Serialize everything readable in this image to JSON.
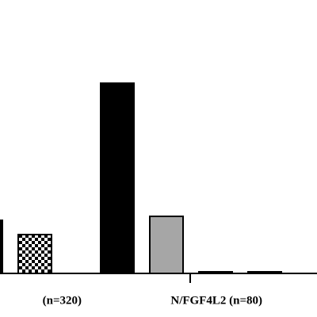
{
  "chart_data": {
    "type": "bar",
    "categories": [
      "(n=320)",
      "N/FGF4L2 (n=80)"
    ],
    "series": [
      {
        "colors": [
          null,
          "#000000"
        ],
        "values": [
          null,
          240
        ]
      },
      {
        "colors": [
          "#000000",
          "#a6a6a6"
        ],
        "values": [
          67,
          72
        ]
      },
      {
        "colors": [
          "checker",
          "#000000"
        ],
        "values": [
          49,
          2
        ]
      },
      {
        "colors": [
          null,
          "#000000"
        ],
        "values": [
          null,
          2
        ]
      }
    ],
    "ylim": [
      0,
      260
    ]
  }
}
